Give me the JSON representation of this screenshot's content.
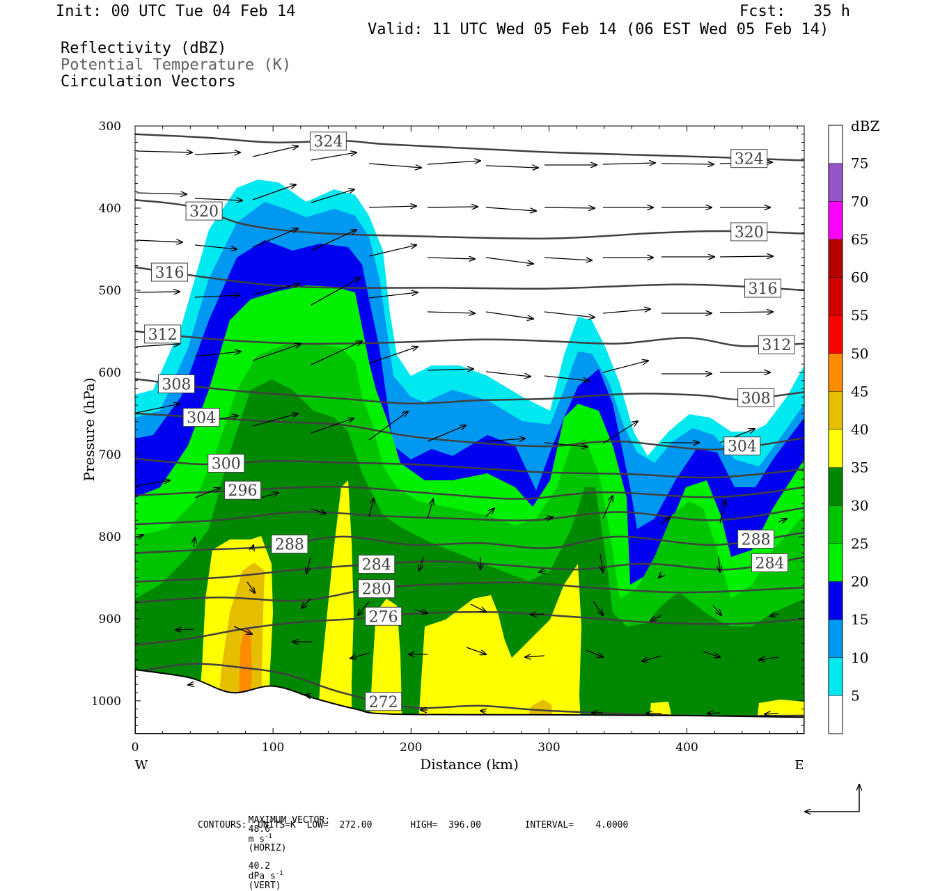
{
  "header": {
    "init": "Init: 00 UTC Tue 04 Feb 14",
    "fcst": "Fcst:   35 h",
    "valid": "Valid: 11 UTC Wed 05 Feb 14 (06 EST Wed 05 Feb 14)",
    "field1": "Reflectivity (dBZ)",
    "field2": "Potential Temperature (K)",
    "field3": "Circulation Vectors"
  },
  "colors": {
    "theta_contour": "#404040",
    "vector": "#000000",
    "ground": "#ffffff",
    "dbz_scale": [
      "#ffffff",
      "#00e8f0",
      "#0098f0",
      "#0000f0",
      "#00f000",
      "#00c400",
      "#008800",
      "#ffff00",
      "#e6be00",
      "#ff8c00",
      "#ff0000",
      "#d40000",
      "#b40000",
      "#ff00ff",
      "#9455c8",
      "#ffffff"
    ]
  },
  "chart_data": {
    "type": "heatmap",
    "xlabel": "Distance (km)",
    "ylabel": "Pressure (hPa)",
    "xlim": [
      0,
      485
    ],
    "ylim": [
      1040,
      300
    ],
    "x_ticks": [
      "0",
      "100",
      "200",
      "300",
      "400"
    ],
    "y_ticks": [
      "300",
      "400",
      "500",
      "600",
      "700",
      "800",
      "900",
      "1000"
    ],
    "x_end_labels": {
      "left": "W",
      "right": "E"
    },
    "colorbar": {
      "title": "dBZ",
      "levels": [
        "5",
        "10",
        "15",
        "20",
        "25",
        "30",
        "35",
        "40",
        "45",
        "50",
        "55",
        "60",
        "65",
        "70",
        "75"
      ]
    },
    "isentropes": [
      {
        "theta": "324",
        "points": [
          [
            0,
            310
          ],
          [
            50,
            314
          ],
          [
            100,
            320
          ],
          [
            150,
            318
          ],
          [
            180,
            322
          ],
          [
            240,
            327
          ],
          [
            300,
            332
          ],
          [
            360,
            335
          ],
          [
            420,
            338
          ],
          [
            485,
            342
          ]
        ]
      },
      {
        "theta": "320",
        "points": [
          [
            0,
            390
          ],
          [
            40,
            398
          ],
          [
            80,
            420
          ],
          [
            130,
            430
          ],
          [
            200,
            434
          ],
          [
            300,
            437
          ],
          [
            380,
            430
          ],
          [
            430,
            428
          ],
          [
            485,
            431
          ]
        ]
      },
      {
        "theta": "316",
        "points": [
          [
            0,
            472
          ],
          [
            50,
            484
          ],
          [
            100,
            494
          ],
          [
            150,
            497
          ],
          [
            220,
            497
          ],
          [
            300,
            498
          ],
          [
            400,
            493
          ],
          [
            485,
            500
          ]
        ]
      },
      {
        "theta": "312",
        "points": [
          [
            0,
            550
          ],
          [
            60,
            560
          ],
          [
            120,
            565
          ],
          [
            180,
            564
          ],
          [
            250,
            560
          ],
          [
            300,
            562
          ],
          [
            350,
            565
          ],
          [
            400,
            558
          ],
          [
            440,
            568
          ],
          [
            485,
            565
          ]
        ]
      },
      {
        "theta": "308",
        "points": [
          [
            0,
            608
          ],
          [
            70,
            622
          ],
          [
            150,
            632
          ],
          [
            200,
            638
          ],
          [
            250,
            634
          ],
          [
            300,
            632
          ],
          [
            360,
            626
          ],
          [
            410,
            628
          ],
          [
            440,
            633
          ],
          [
            485,
            624
          ]
        ]
      },
      {
        "theta": "304",
        "points": [
          [
            0,
            650
          ],
          [
            50,
            655
          ],
          [
            100,
            660
          ],
          [
            150,
            664
          ],
          [
            200,
            678
          ],
          [
            250,
            686
          ],
          [
            300,
            690
          ],
          [
            350,
            684
          ],
          [
            420,
            694
          ],
          [
            485,
            680
          ]
        ]
      },
      {
        "theta": "300",
        "points": [
          [
            0,
            705
          ],
          [
            50,
            712
          ],
          [
            100,
            708
          ],
          [
            150,
            710
          ],
          [
            200,
            712
          ],
          [
            260,
            718
          ],
          [
            300,
            722
          ],
          [
            360,
            724
          ],
          [
            420,
            728
          ],
          [
            485,
            718
          ]
        ]
      },
      {
        "theta": "296",
        "points": [
          [
            0,
            750
          ],
          [
            60,
            745
          ],
          [
            120,
            740
          ],
          [
            160,
            740
          ],
          [
            220,
            748
          ],
          [
            280,
            754
          ],
          [
            340,
            746
          ],
          [
            420,
            752
          ],
          [
            485,
            740
          ]
        ]
      },
      {
        "theta": "292",
        "points": [
          [
            0,
            785
          ],
          [
            60,
            780
          ],
          [
            120,
            770
          ],
          [
            180,
            775
          ],
          [
            230,
            778
          ],
          [
            290,
            780
          ],
          [
            350,
            770
          ],
          [
            420,
            780
          ],
          [
            485,
            765
          ]
        ]
      },
      {
        "theta": "288",
        "points": [
          [
            0,
            820
          ],
          [
            50,
            816
          ],
          [
            100,
            812
          ],
          [
            150,
            800
          ],
          [
            200,
            810
          ],
          [
            250,
            808
          ],
          [
            300,
            814
          ],
          [
            350,
            800
          ],
          [
            420,
            810
          ],
          [
            485,
            795
          ]
        ]
      },
      {
        "theta": "284",
        "points": [
          [
            0,
            855
          ],
          [
            60,
            850
          ],
          [
            120,
            840
          ],
          [
            170,
            834
          ],
          [
            220,
            830
          ],
          [
            270,
            835
          ],
          [
            320,
            840
          ],
          [
            370,
            833
          ],
          [
            430,
            840
          ],
          [
            485,
            825
          ]
        ]
      },
      {
        "theta": "280",
        "points": [
          [
            0,
            880
          ],
          [
            60,
            874
          ],
          [
            120,
            878
          ],
          [
            170,
            864
          ],
          [
            220,
            858
          ],
          [
            280,
            856
          ],
          [
            330,
            862
          ],
          [
            400,
            868
          ],
          [
            485,
            862
          ]
        ]
      },
      {
        "theta": "276",
        "points": [
          [
            0,
            932
          ],
          [
            40,
            924
          ],
          [
            80,
            912
          ],
          [
            120,
            904
          ],
          [
            160,
            900
          ],
          [
            200,
            894
          ],
          [
            260,
            892
          ],
          [
            320,
            898
          ],
          [
            380,
            905
          ],
          [
            440,
            906
          ],
          [
            485,
            900
          ]
        ]
      },
      {
        "theta": "272",
        "points": [
          [
            0,
            965
          ],
          [
            40,
            955
          ],
          [
            80,
            960
          ],
          [
            110,
            968
          ],
          [
            150,
            990
          ],
          [
            200,
            1008
          ],
          [
            250,
            1006
          ],
          [
            300,
            1012
          ],
          [
            400,
            1018
          ],
          [
            485,
            1018
          ]
        ]
      }
    ],
    "ground_surface_hpa": [
      [
        0,
        962
      ],
      [
        40,
        972
      ],
      [
        70,
        990
      ],
      [
        100,
        982
      ],
      [
        130,
        997
      ],
      [
        160,
        1010
      ],
      [
        185,
        1016
      ],
      [
        300,
        1017
      ],
      [
        400,
        1018
      ],
      [
        485,
        1020
      ]
    ],
    "footer": {
      "max_vector_prefix": "MAXIMUM VECTOR:",
      "horiz_value": "48.6",
      "horiz_unit": "m s",
      "horiz_exp": "-1",
      "horiz_label": "(HORIZ)",
      "vert_value": "40.2",
      "vert_unit": "dPa s",
      "vert_exp": "-1",
      "vert_label": "(VERT)",
      "contours_line": "CONTOURS:  UNITS=K  LOW=  272.00       HIGH=  396.00        INTERVAL=    4.0000"
    }
  }
}
